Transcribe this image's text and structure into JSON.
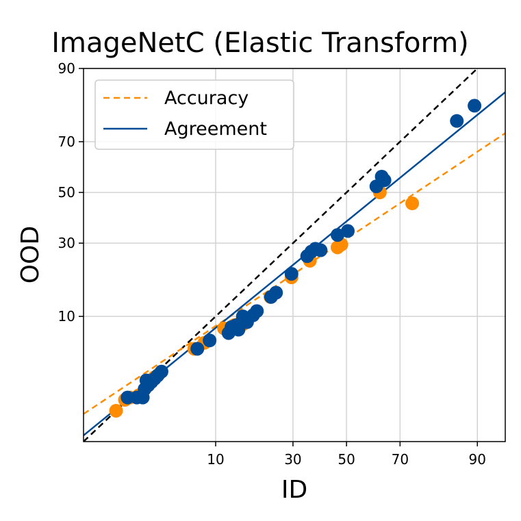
{
  "chart_data": {
    "type": "scatter",
    "title": "ImageNetC (Elastic Transform)",
    "xlabel": "ID",
    "ylabel": "OOD",
    "scale": "probit",
    "xlim": [
      0.5,
      94
    ],
    "ylim": [
      0.5,
      90
    ],
    "xticks": [
      10,
      30,
      50,
      70,
      90
    ],
    "yticks": [
      10,
      30,
      50,
      70,
      90
    ],
    "grid": true,
    "legend_position": "top-left",
    "colors": {
      "accuracy": "#ff8c00",
      "agreement": "#004b96",
      "diagonal": "#000000",
      "grid": "#d3d3d3"
    },
    "series": [
      {
        "name": "Accuracy",
        "line_style": "dashed",
        "fit_line": {
          "x": [
            0.5,
            94
          ],
          "y": [
            1.1,
            73.0
          ]
        },
        "points": [
          [
            1.2,
            1.2
          ],
          [
            1.5,
            1.6
          ],
          [
            1.7,
            1.7
          ],
          [
            2.1,
            1.8
          ],
          [
            2.6,
            2.3
          ],
          [
            3.0,
            2.8
          ],
          [
            3.3,
            3.0
          ],
          [
            6.8,
            5.3
          ],
          [
            8.2,
            6.0
          ],
          [
            11.5,
            8.0
          ],
          [
            13.6,
            8.5
          ],
          [
            14.8,
            8.8
          ],
          [
            15.4,
            8.6
          ],
          [
            22.8,
            14.0
          ],
          [
            29.5,
            19.0
          ],
          [
            36.0,
            24.0
          ],
          [
            46.5,
            28.5
          ],
          [
            48.0,
            29.5
          ],
          [
            62.8,
            50.0
          ],
          [
            74.0,
            45.5
          ]
        ]
      },
      {
        "name": "Agreement",
        "line_style": "solid",
        "fit_line": {
          "x": [
            0.5,
            94
          ],
          "y": [
            0.6,
            85.0
          ]
        },
        "points": [
          [
            1.6,
            1.7
          ],
          [
            2.0,
            1.7
          ],
          [
            2.3,
            1.7
          ],
          [
            2.4,
            2.1
          ],
          [
            2.6,
            2.3
          ],
          [
            2.5,
            2.6
          ],
          [
            2.8,
            2.5
          ],
          [
            3.0,
            2.7
          ],
          [
            3.2,
            2.9
          ],
          [
            3.5,
            3.2
          ],
          [
            7.2,
            5.3
          ],
          [
            9.0,
            6.3
          ],
          [
            12.4,
            7.3
          ],
          [
            13.0,
            8.2
          ],
          [
            14.0,
            8.5
          ],
          [
            14.5,
            7.8
          ],
          [
            15.5,
            10.0
          ],
          [
            16.5,
            9.0
          ],
          [
            18.0,
            10.2
          ],
          [
            19.0,
            11.0
          ],
          [
            23.0,
            14.0
          ],
          [
            24.5,
            15.0
          ],
          [
            29.5,
            20.0
          ],
          [
            35.0,
            25.5
          ],
          [
            36.5,
            27.0
          ],
          [
            38.0,
            28.0
          ],
          [
            40.0,
            27.5
          ],
          [
            46.5,
            33.0
          ],
          [
            50.5,
            34.5
          ],
          [
            61.5,
            52.5
          ],
          [
            63.5,
            56.5
          ],
          [
            64.5,
            55.0
          ],
          [
            86.0,
            77.0
          ],
          [
            89.5,
            81.5
          ]
        ]
      }
    ],
    "diagonal": {
      "x": [
        0.5,
        94
      ],
      "y": [
        0.5,
        94
      ]
    }
  }
}
